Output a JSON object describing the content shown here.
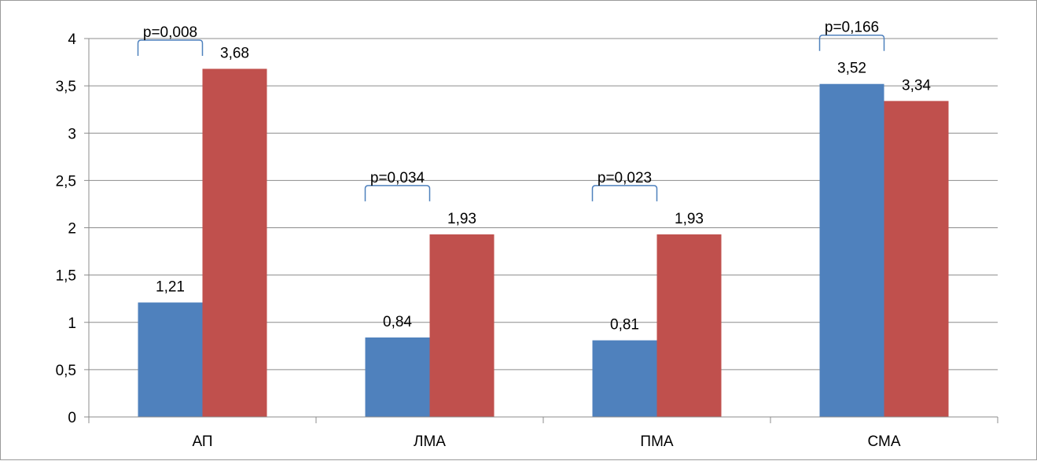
{
  "chart_data": {
    "type": "bar",
    "title": "",
    "xlabel": "",
    "ylabel": "",
    "ylim": [
      0,
      4
    ],
    "yticks": [
      0,
      0.5,
      1,
      1.5,
      2,
      2.5,
      3,
      3.5,
      4
    ],
    "ytick_labels": [
      "0",
      "0,5",
      "1",
      "1,5",
      "2",
      "2,5",
      "3",
      "3,5",
      "4"
    ],
    "grid": true,
    "legend": "none",
    "categories": [
      "АП",
      "ЛМА",
      "ПМА",
      "СМА"
    ],
    "series": [
      {
        "color": "#4f81bd",
        "values": [
          1.21,
          0.84,
          0.81,
          3.52
        ],
        "labels": [
          "1,21",
          "0,84",
          "0,81",
          "3,52"
        ]
      },
      {
        "color": "#c0504d",
        "values": [
          3.68,
          1.93,
          1.93,
          3.34
        ],
        "labels": [
          "3,68",
          "1,93",
          "1,93",
          "3,34"
        ]
      }
    ],
    "annotations": [
      {
        "category": 0,
        "text": "p=0,008"
      },
      {
        "category": 1,
        "text": "p=0,034"
      },
      {
        "category": 2,
        "text": "p=0,023"
      },
      {
        "category": 3,
        "text": "p=0,166"
      }
    ]
  }
}
